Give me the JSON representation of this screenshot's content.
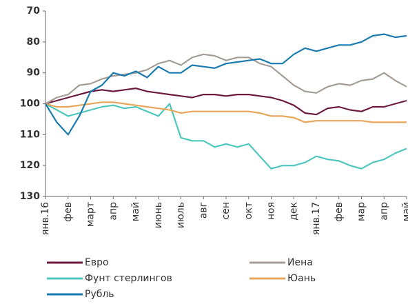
{
  "chart_data": {
    "type": "line",
    "categories": [
      "янв.16",
      null,
      "фев",
      null,
      "март",
      null,
      "апр",
      null,
      "май",
      null,
      "июнь",
      null,
      "июль",
      null,
      "авг",
      null,
      "сен",
      null,
      "окт",
      null,
      "ноя",
      null,
      "дек",
      null,
      "янв.17",
      null,
      "фев",
      null,
      "мар",
      null,
      "апр",
      null,
      "май"
    ],
    "ylim": [
      70,
      130
    ],
    "y_inverted": true,
    "yticks": [
      70,
      80,
      90,
      100,
      110,
      120,
      130
    ],
    "grid": false,
    "legend": "bottom",
    "series": [
      {
        "name": "Евро",
        "color": "#6b1a3e",
        "values": [
          100,
          99,
          98,
          97,
          96,
          95.5,
          96,
          95.5,
          95,
          96,
          96.5,
          97,
          97.5,
          98,
          97,
          97,
          97.5,
          97,
          97,
          97.5,
          98,
          99,
          100.5,
          103,
          103.5,
          101.5,
          101,
          102,
          102.5,
          101,
          101,
          100,
          99
        ]
      },
      {
        "name": "Иена",
        "color": "#a59d95",
        "values": [
          100,
          98,
          97,
          94,
          93.5,
          92,
          91,
          90.5,
          90,
          89,
          87,
          86,
          87.5,
          85,
          84,
          84.5,
          86,
          85,
          85,
          87,
          88,
          91,
          94,
          96,
          96.5,
          94.5,
          93.5,
          94,
          92.5,
          92,
          90,
          92.5,
          94.5
        ]
      },
      {
        "name": "Фунт стерлингов",
        "color": "#4dc7be",
        "values": [
          100,
          102,
          104,
          103,
          102,
          101,
          100.5,
          101.5,
          101,
          102.5,
          104,
          100,
          111,
          112,
          112,
          114,
          113,
          114,
          113,
          117,
          121,
          120,
          120,
          119,
          117,
          118,
          118.5,
          120,
          121,
          119,
          118,
          116,
          114.5
        ]
      },
      {
        "name": "Юань",
        "color": "#e8a65a",
        "values": [
          100,
          101,
          101,
          100.5,
          100,
          99.5,
          99.5,
          100,
          100.5,
          101,
          101.5,
          102,
          103,
          102.5,
          102.5,
          102.5,
          102.5,
          102.5,
          102.5,
          103,
          104,
          104,
          104.5,
          106,
          105.5,
          105.5,
          105.5,
          105.5,
          105.5,
          106,
          106,
          106,
          106
        ]
      },
      {
        "name": "Рубль",
        "color": "#1a7ab0",
        "values": [
          100,
          106,
          110,
          104,
          96,
          94,
          90,
          91,
          89.5,
          91.5,
          88,
          90,
          90,
          87.5,
          88,
          88.5,
          87,
          86.5,
          86,
          85.5,
          87,
          87,
          84,
          82,
          83,
          82,
          81,
          81,
          80,
          78,
          77.5,
          78.5,
          78
        ]
      }
    ]
  }
}
